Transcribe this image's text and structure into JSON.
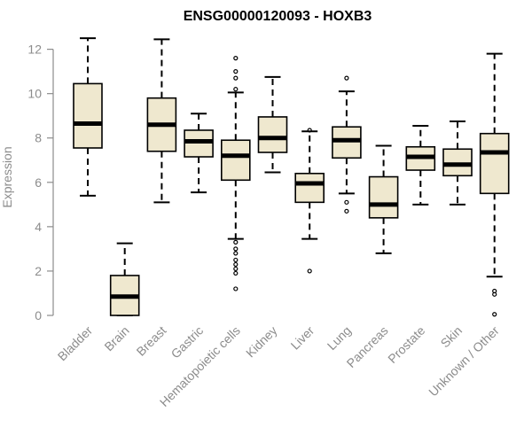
{
  "chart_data": {
    "type": "boxplot",
    "title": "ENSG00000120093 - HOXB3",
    "xlabel": "",
    "ylabel": "Expression",
    "ylim": [
      0,
      12.5
    ],
    "yticks": [
      0,
      2,
      4,
      6,
      8,
      10,
      12
    ],
    "grid": false,
    "legend": "none",
    "colors": {
      "box_fill": "#efe8cf",
      "box_stroke": "#000000",
      "median": "#000000",
      "axis": "#8c8c8c",
      "text": "#8c8c8c",
      "title": "#000000"
    },
    "categories": [
      "Bladder",
      "Brain",
      "Breast",
      "Gastric",
      "Hematopoietic cells",
      "Kidney",
      "Liver",
      "Lung",
      "Pancreas",
      "Prostate",
      "Skin",
      "Unknown / Other"
    ],
    "boxes": [
      {
        "min": 5.4,
        "q1": 7.55,
        "median": 8.65,
        "q3": 10.45,
        "max": 12.5,
        "outliers": []
      },
      {
        "min": 0.0,
        "q1": 0.0,
        "median": 0.85,
        "q3": 1.8,
        "max": 3.25,
        "outliers": []
      },
      {
        "min": 5.1,
        "q1": 7.4,
        "median": 8.6,
        "q3": 9.8,
        "max": 12.45,
        "outliers": []
      },
      {
        "min": 5.55,
        "q1": 7.15,
        "median": 7.85,
        "q3": 8.35,
        "max": 9.1,
        "outliers": []
      },
      {
        "min": 3.45,
        "q1": 6.1,
        "median": 7.2,
        "q3": 7.9,
        "max": 10.05,
        "outliers": [
          11.6,
          11.0,
          10.7,
          10.2,
          3.3,
          3.0,
          2.8,
          2.5,
          2.3,
          2.1,
          1.9,
          1.2
        ]
      },
      {
        "min": 6.45,
        "q1": 7.35,
        "median": 8.0,
        "q3": 8.95,
        "max": 10.75,
        "outliers": []
      },
      {
        "min": 3.45,
        "q1": 5.1,
        "median": 5.95,
        "q3": 6.4,
        "max": 8.3,
        "outliers": [
          8.35,
          2.0
        ]
      },
      {
        "min": 5.5,
        "q1": 7.1,
        "median": 7.9,
        "q3": 8.5,
        "max": 10.1,
        "outliers": [
          10.7,
          5.1,
          4.7
        ]
      },
      {
        "min": 2.8,
        "q1": 4.4,
        "median": 5.0,
        "q3": 6.25,
        "max": 7.65,
        "outliers": []
      },
      {
        "min": 5.0,
        "q1": 6.55,
        "median": 7.15,
        "q3": 7.6,
        "max": 8.55,
        "outliers": []
      },
      {
        "min": 5.0,
        "q1": 6.3,
        "median": 6.8,
        "q3": 7.5,
        "max": 8.75,
        "outliers": []
      },
      {
        "min": 1.75,
        "q1": 5.5,
        "median": 7.35,
        "q3": 8.2,
        "max": 11.8,
        "outliers": [
          1.1,
          0.95,
          0.05
        ]
      }
    ]
  }
}
